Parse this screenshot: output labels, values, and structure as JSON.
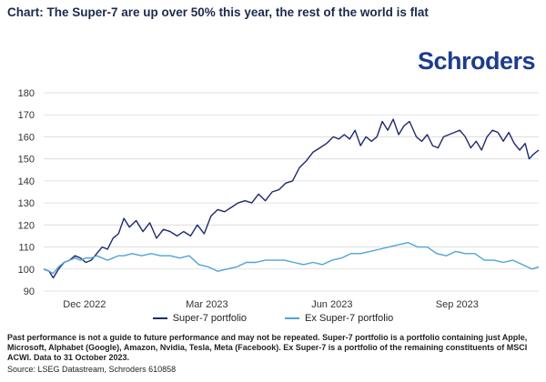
{
  "title": "Chart: The Super-7 are up over 50% this year, the rest of the world is flat",
  "brand": "Schroders",
  "footnote": "Past performance is not a guide to future performance and may not be repeated. Super-7 portfolio is a portfolio containing just Apple, Microsoft, Alphabet (Google), Amazon, Nvidia, Tesla, Meta (Facebook). Ex Super-7 is a portfolio of the remaining constituents of MSCI ACWI. Data to 31 October 2023.",
  "source": "Source: LSEG Datastream, Schroders 610858",
  "chart_data": {
    "type": "line",
    "ylim": [
      90,
      180
    ],
    "y_ticks": [
      90,
      100,
      110,
      120,
      130,
      140,
      150,
      160,
      170,
      180
    ],
    "x_range": [
      "2022-11-01",
      "2023-10-31"
    ],
    "x_ticks": [
      {
        "date": "2022-12-01",
        "label": "Dec 2022"
      },
      {
        "date": "2023-03-01",
        "label": "Mar 2023"
      },
      {
        "date": "2023-06-01",
        "label": "Jun 2023"
      },
      {
        "date": "2023-09-01",
        "label": "Sep 2023"
      }
    ],
    "grid": true,
    "legend_position": "bottom",
    "series": [
      {
        "name": "Super-7 portfolio",
        "color": "#1f2a6b",
        "points": [
          [
            "2022-11-01",
            100
          ],
          [
            "2022-11-05",
            99
          ],
          [
            "2022-11-08",
            96
          ],
          [
            "2022-11-12",
            100
          ],
          [
            "2022-11-16",
            103
          ],
          [
            "2022-11-20",
            104
          ],
          [
            "2022-11-24",
            106
          ],
          [
            "2022-11-28",
            105
          ],
          [
            "2022-12-02",
            103
          ],
          [
            "2022-12-06",
            104
          ],
          [
            "2022-12-10",
            107
          ],
          [
            "2022-12-14",
            110
          ],
          [
            "2022-12-18",
            109
          ],
          [
            "2022-12-22",
            114
          ],
          [
            "2022-12-26",
            116
          ],
          [
            "2022-12-30",
            123
          ],
          [
            "2023-01-03",
            119
          ],
          [
            "2023-01-08",
            122
          ],
          [
            "2023-01-13",
            117
          ],
          [
            "2023-01-18",
            121
          ],
          [
            "2023-01-23",
            114
          ],
          [
            "2023-01-28",
            118
          ],
          [
            "2023-02-02",
            117
          ],
          [
            "2023-02-07",
            115
          ],
          [
            "2023-02-12",
            117
          ],
          [
            "2023-02-17",
            115
          ],
          [
            "2023-02-22",
            120
          ],
          [
            "2023-02-27",
            116
          ],
          [
            "2023-03-04",
            124
          ],
          [
            "2023-03-09",
            127
          ],
          [
            "2023-03-14",
            126
          ],
          [
            "2023-03-19",
            128
          ],
          [
            "2023-03-24",
            130
          ],
          [
            "2023-03-29",
            131
          ],
          [
            "2023-04-03",
            130
          ],
          [
            "2023-04-08",
            134
          ],
          [
            "2023-04-13",
            131
          ],
          [
            "2023-04-18",
            135
          ],
          [
            "2023-04-23",
            136
          ],
          [
            "2023-04-28",
            139
          ],
          [
            "2023-05-03",
            140
          ],
          [
            "2023-05-08",
            146
          ],
          [
            "2023-05-13",
            149
          ],
          [
            "2023-05-18",
            153
          ],
          [
            "2023-05-23",
            155
          ],
          [
            "2023-05-28",
            157
          ],
          [
            "2023-06-02",
            160
          ],
          [
            "2023-06-06",
            159
          ],
          [
            "2023-06-10",
            161
          ],
          [
            "2023-06-14",
            159
          ],
          [
            "2023-06-18",
            163
          ],
          [
            "2023-06-22",
            156
          ],
          [
            "2023-06-26",
            160
          ],
          [
            "2023-06-30",
            158
          ],
          [
            "2023-07-04",
            160
          ],
          [
            "2023-07-08",
            167
          ],
          [
            "2023-07-12",
            163
          ],
          [
            "2023-07-16",
            168
          ],
          [
            "2023-07-20",
            161
          ],
          [
            "2023-07-24",
            165
          ],
          [
            "2023-07-28",
            167
          ],
          [
            "2023-08-02",
            160
          ],
          [
            "2023-08-06",
            158
          ],
          [
            "2023-08-10",
            161
          ],
          [
            "2023-08-14",
            156
          ],
          [
            "2023-08-18",
            155
          ],
          [
            "2023-08-22",
            160
          ],
          [
            "2023-08-26",
            161
          ],
          [
            "2023-08-30",
            162
          ],
          [
            "2023-09-03",
            163
          ],
          [
            "2023-09-07",
            160
          ],
          [
            "2023-09-11",
            155
          ],
          [
            "2023-09-15",
            158
          ],
          [
            "2023-09-19",
            154
          ],
          [
            "2023-09-23",
            160
          ],
          [
            "2023-09-27",
            163
          ],
          [
            "2023-10-01",
            162
          ],
          [
            "2023-10-05",
            158
          ],
          [
            "2023-10-09",
            162
          ],
          [
            "2023-10-13",
            157
          ],
          [
            "2023-10-17",
            154
          ],
          [
            "2023-10-21",
            157
          ],
          [
            "2023-10-24",
            150
          ],
          [
            "2023-10-27",
            152
          ],
          [
            "2023-10-31",
            154
          ]
        ]
      },
      {
        "name": "Ex Super-7 portfolio",
        "color": "#4fa3d8",
        "points": [
          [
            "2022-11-01",
            100
          ],
          [
            "2022-11-05",
            99
          ],
          [
            "2022-11-08",
            98
          ],
          [
            "2022-11-12",
            101
          ],
          [
            "2022-11-16",
            103
          ],
          [
            "2022-11-20",
            104
          ],
          [
            "2022-11-24",
            105
          ],
          [
            "2022-11-28",
            104
          ],
          [
            "2022-12-02",
            105
          ],
          [
            "2022-12-06",
            105
          ],
          [
            "2022-12-10",
            106
          ],
          [
            "2022-12-14",
            105
          ],
          [
            "2022-12-18",
            104
          ],
          [
            "2022-12-22",
            105
          ],
          [
            "2022-12-26",
            106
          ],
          [
            "2022-12-30",
            106
          ],
          [
            "2023-01-05",
            107
          ],
          [
            "2023-01-12",
            106
          ],
          [
            "2023-01-19",
            107
          ],
          [
            "2023-01-26",
            106
          ],
          [
            "2023-02-02",
            106
          ],
          [
            "2023-02-09",
            105
          ],
          [
            "2023-02-16",
            106
          ],
          [
            "2023-02-23",
            102
          ],
          [
            "2023-03-02",
            101
          ],
          [
            "2023-03-09",
            99
          ],
          [
            "2023-03-16",
            100
          ],
          [
            "2023-03-23",
            101
          ],
          [
            "2023-03-30",
            103
          ],
          [
            "2023-04-06",
            103
          ],
          [
            "2023-04-13",
            104
          ],
          [
            "2023-04-20",
            104
          ],
          [
            "2023-04-27",
            104
          ],
          [
            "2023-05-04",
            103
          ],
          [
            "2023-05-11",
            102
          ],
          [
            "2023-05-18",
            103
          ],
          [
            "2023-05-25",
            102
          ],
          [
            "2023-06-01",
            104
          ],
          [
            "2023-06-08",
            105
          ],
          [
            "2023-06-15",
            107
          ],
          [
            "2023-06-22",
            107
          ],
          [
            "2023-06-29",
            108
          ],
          [
            "2023-07-06",
            109
          ],
          [
            "2023-07-13",
            110
          ],
          [
            "2023-07-20",
            111
          ],
          [
            "2023-07-27",
            112
          ],
          [
            "2023-08-03",
            110
          ],
          [
            "2023-08-10",
            110
          ],
          [
            "2023-08-17",
            107
          ],
          [
            "2023-08-24",
            106
          ],
          [
            "2023-08-31",
            108
          ],
          [
            "2023-09-07",
            107
          ],
          [
            "2023-09-14",
            107
          ],
          [
            "2023-09-21",
            104
          ],
          [
            "2023-09-28",
            104
          ],
          [
            "2023-10-05",
            103
          ],
          [
            "2023-10-12",
            104
          ],
          [
            "2023-10-19",
            102
          ],
          [
            "2023-10-26",
            100
          ],
          [
            "2023-10-31",
            101
          ]
        ]
      }
    ]
  }
}
